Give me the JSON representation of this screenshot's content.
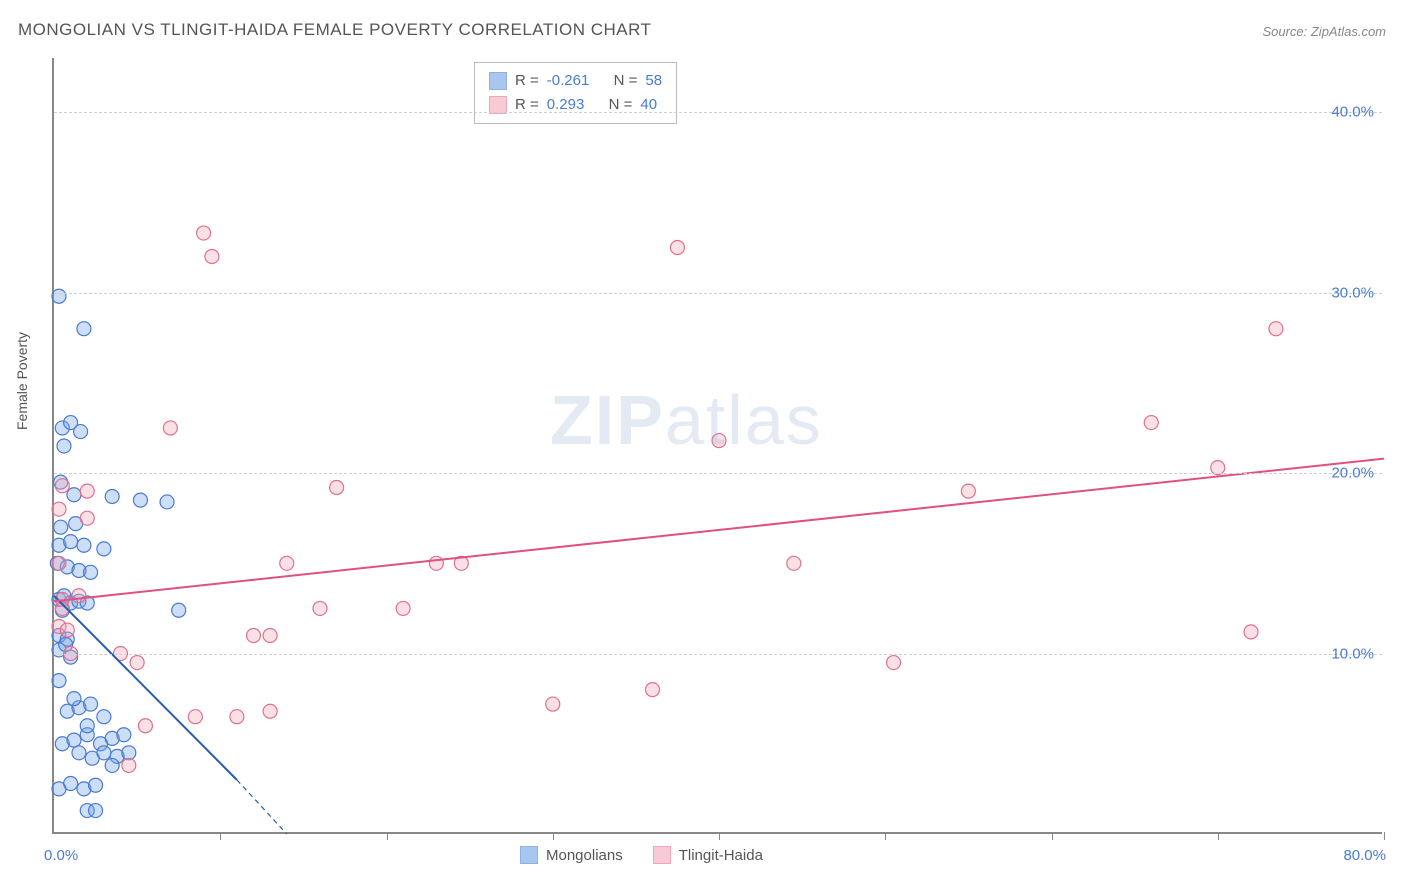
{
  "title": "MONGOLIAN VS TLINGIT-HAIDA FEMALE POVERTY CORRELATION CHART",
  "source": "Source: ZipAtlas.com",
  "ylabel": "Female Poverty",
  "watermark_bold": "ZIP",
  "watermark_light": "atlas",
  "chart": {
    "type": "scatter",
    "xlim": [
      0,
      80
    ],
    "ylim": [
      0,
      43
    ],
    "x_ticks": [
      0,
      10,
      20,
      30,
      40,
      50,
      60,
      70,
      80
    ],
    "y_gridlines": [
      10,
      20,
      30,
      40
    ],
    "y_tick_labels": [
      "10.0%",
      "20.0%",
      "30.0%",
      "40.0%"
    ],
    "x0_label": "0.0%",
    "xmax_label": "80.0%",
    "background_color": "#ffffff",
    "grid_color": "#d0d0d0",
    "axis_color": "#888888",
    "label_color": "#4a7bd0",
    "title_fontsize": 17,
    "label_fontsize": 15,
    "ylabel_fontsize": 14,
    "marker_radius": 7,
    "marker_stroke_width": 1.2,
    "marker_fill_opacity": 0.35,
    "trendline_width": 2,
    "trendline_dash_width": 1.2
  },
  "series": [
    {
      "name": "Mongolians",
      "color": "#6fa3e6",
      "stroke": "#4a7bd0",
      "trend_color": "#2a5bb0",
      "R": "-0.261",
      "N": "58",
      "trendline": {
        "x1": 0,
        "y1": 13.2,
        "x2": 11,
        "y2": 3.0,
        "dash_x2": 14,
        "dash_y2": 0
      },
      "points": [
        [
          0.3,
          29.8
        ],
        [
          1.8,
          28.0
        ],
        [
          0.5,
          22.5
        ],
        [
          1.6,
          22.3
        ],
        [
          1.0,
          22.8
        ],
        [
          0.4,
          19.5
        ],
        [
          1.2,
          18.8
        ],
        [
          3.5,
          18.7
        ],
        [
          5.2,
          18.5
        ],
        [
          6.8,
          18.4
        ],
        [
          0.3,
          16.0
        ],
        [
          1.0,
          16.2
        ],
        [
          1.8,
          16.0
        ],
        [
          3.0,
          15.8
        ],
        [
          0.2,
          15.0
        ],
        [
          0.8,
          14.8
        ],
        [
          1.5,
          14.6
        ],
        [
          2.2,
          14.5
        ],
        [
          0.3,
          13.0
        ],
        [
          0.6,
          13.2
        ],
        [
          1.0,
          12.8
        ],
        [
          1.5,
          12.9
        ],
        [
          2.0,
          12.8
        ],
        [
          0.5,
          12.4
        ],
        [
          7.5,
          12.4
        ],
        [
          0.3,
          11.0
        ],
        [
          0.8,
          10.8
        ],
        [
          1.0,
          9.8
        ],
        [
          0.3,
          8.5
        ],
        [
          0.8,
          6.8
        ],
        [
          1.5,
          7.0
        ],
        [
          2.2,
          7.2
        ],
        [
          3.0,
          6.5
        ],
        [
          0.5,
          5.0
        ],
        [
          1.2,
          5.2
        ],
        [
          2.0,
          5.5
        ],
        [
          2.8,
          5.0
        ],
        [
          3.5,
          5.3
        ],
        [
          4.2,
          5.5
        ],
        [
          1.5,
          4.5
        ],
        [
          2.3,
          4.2
        ],
        [
          3.0,
          4.5
        ],
        [
          3.8,
          4.3
        ],
        [
          4.5,
          4.5
        ],
        [
          0.3,
          2.5
        ],
        [
          1.0,
          2.8
        ],
        [
          1.8,
          2.5
        ],
        [
          2.5,
          2.7
        ],
        [
          3.5,
          3.8
        ],
        [
          2.0,
          1.3
        ],
        [
          2.5,
          1.3
        ],
        [
          0.6,
          21.5
        ],
        [
          0.4,
          17.0
        ],
        [
          1.3,
          17.2
        ],
        [
          0.3,
          10.2
        ],
        [
          0.7,
          10.5
        ],
        [
          1.2,
          7.5
        ],
        [
          2.0,
          6.0
        ]
      ]
    },
    {
      "name": "Tlingit-Haida",
      "color": "#f4a8b8",
      "stroke": "#e07090",
      "trend_color": "#e05080",
      "R": "0.293",
      "N": "40",
      "trendline": {
        "x1": 0,
        "y1": 12.9,
        "x2": 80,
        "y2": 20.8
      },
      "points": [
        [
          9.0,
          33.3
        ],
        [
          9.5,
          32.0
        ],
        [
          37.5,
          32.5
        ],
        [
          73.5,
          28.0
        ],
        [
          7.0,
          22.5
        ],
        [
          66.0,
          22.8
        ],
        [
          40.0,
          21.8
        ],
        [
          70.0,
          20.3
        ],
        [
          0.5,
          19.3
        ],
        [
          2.0,
          19.0
        ],
        [
          17.0,
          19.2
        ],
        [
          55.0,
          19.0
        ],
        [
          0.3,
          18.0
        ],
        [
          2.0,
          17.5
        ],
        [
          0.3,
          15.0
        ],
        [
          14.0,
          15.0
        ],
        [
          23.0,
          15.0
        ],
        [
          24.5,
          15.0
        ],
        [
          44.5,
          15.0
        ],
        [
          0.5,
          13.0
        ],
        [
          1.5,
          13.2
        ],
        [
          16.0,
          12.5
        ],
        [
          21.0,
          12.5
        ],
        [
          72.0,
          11.2
        ],
        [
          0.3,
          11.5
        ],
        [
          0.8,
          11.3
        ],
        [
          12.0,
          11.0
        ],
        [
          13.0,
          11.0
        ],
        [
          5.0,
          9.5
        ],
        [
          4.0,
          10.0
        ],
        [
          50.5,
          9.5
        ],
        [
          36.0,
          8.0
        ],
        [
          30.0,
          7.2
        ],
        [
          8.5,
          6.5
        ],
        [
          11.0,
          6.5
        ],
        [
          13.0,
          6.8
        ],
        [
          4.5,
          3.8
        ],
        [
          5.5,
          6.0
        ],
        [
          0.5,
          12.5
        ],
        [
          1.0,
          10.0
        ]
      ]
    }
  ],
  "legend": {
    "R_label": "R =",
    "N_label": "N =",
    "bottom_items": [
      "Mongolians",
      "Tlingit-Haida"
    ]
  }
}
